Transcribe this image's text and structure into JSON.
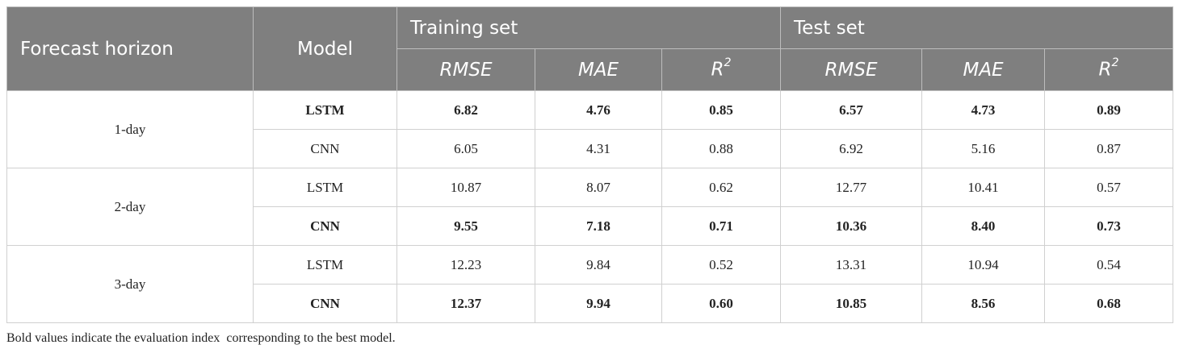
{
  "header": {
    "forecast_horizon": "Forecast horizon",
    "model": "Model",
    "training_set": "Training set",
    "test_set": "Test set",
    "metrics": {
      "rmse": "RMSE",
      "mae": "MAE",
      "r2_base": "R",
      "r2_sup": "2"
    }
  },
  "groups": [
    {
      "horizon": "1-day",
      "rows": [
        {
          "model": "LSTM",
          "bold": true,
          "train": [
            "6.82",
            "4.76",
            "0.85"
          ],
          "test": [
            "6.57",
            "4.73",
            "0.89"
          ]
        },
        {
          "model": "CNN",
          "bold": false,
          "train": [
            "6.05",
            "4.31",
            "0.88"
          ],
          "test": [
            "6.92",
            "5.16",
            "0.87"
          ]
        }
      ]
    },
    {
      "horizon": "2-day",
      "rows": [
        {
          "model": "LSTM",
          "bold": false,
          "train": [
            "10.87",
            "8.07",
            "0.62"
          ],
          "test": [
            "12.77",
            "10.41",
            "0.57"
          ]
        },
        {
          "model": "CNN",
          "bold": true,
          "train": [
            "9.55",
            "7.18",
            "0.71"
          ],
          "test": [
            "10.36",
            "8.40",
            "0.73"
          ]
        }
      ]
    },
    {
      "horizon": "3-day",
      "rows": [
        {
          "model": "LSTM",
          "bold": false,
          "train": [
            "12.23",
            "9.84",
            "0.52"
          ],
          "test": [
            "13.31",
            "10.94",
            "0.54"
          ]
        },
        {
          "model": "CNN",
          "bold": true,
          "train": [
            "12.37",
            "9.94",
            "0.60"
          ],
          "test": [
            "10.85",
            "8.56",
            "0.68"
          ]
        }
      ]
    }
  ],
  "footnote": "Bold values indicate the evaluation index  corresponding to the best model.",
  "colors": {
    "header_bg": "#7f7f7f",
    "header_text": "#ffffff",
    "border": "#bdbdbd"
  }
}
